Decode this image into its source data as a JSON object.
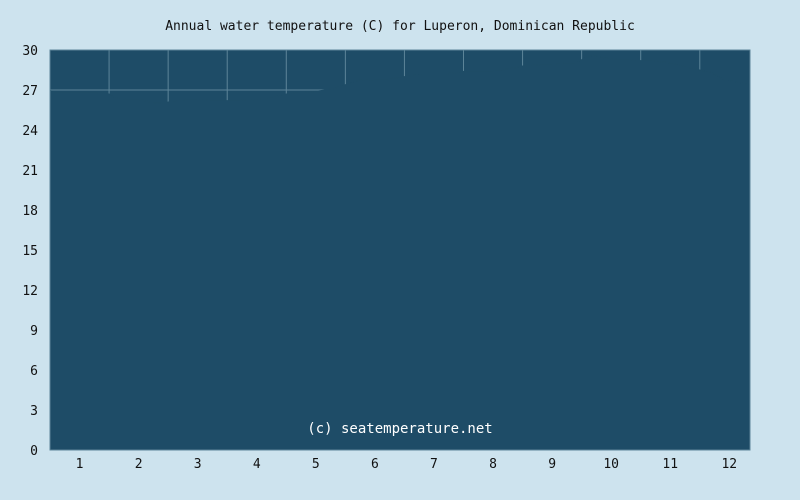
{
  "chart_data": {
    "type": "area",
    "title": "Annual water temperature (C) for Luperon, Dominican Republic",
    "xlabel": "",
    "ylabel": "",
    "ylim": [
      0,
      30
    ],
    "xlim": [
      0.5,
      12.35
    ],
    "grid": true,
    "x_ticks": [
      "1",
      "2",
      "3",
      "4",
      "5",
      "6",
      "7",
      "8",
      "9",
      "10",
      "11",
      "12"
    ],
    "y_ticks": [
      "0",
      "3",
      "6",
      "9",
      "12",
      "15",
      "18",
      "21",
      "24",
      "27",
      "30"
    ],
    "watermark": "(c) seatemperature.net",
    "colors": {
      "background": "#cde3ee",
      "plot_fill": "#1e4c67",
      "area_fill": "#1e4c67",
      "grid": "#5d8599",
      "text": "#111111",
      "watermark": "#ffffff"
    },
    "series": [
      {
        "x": [
          0.5,
          0.55,
          0.7,
          0.9,
          1.1,
          1.3,
          1.5,
          1.6,
          1.8,
          2.0,
          2.1,
          2.3,
          2.5,
          2.8,
          3.0,
          3.2,
          3.4,
          3.7,
          4.0,
          4.3,
          4.5,
          4.7,
          5.0,
          5.3,
          5.5,
          5.7,
          6.0,
          6.2,
          6.5,
          6.8,
          7.0,
          7.2,
          7.5,
          7.8,
          8.0,
          8.3,
          8.5,
          8.8,
          9.0,
          9.2,
          9.4,
          9.55,
          9.7,
          9.9,
          10.1,
          10.3,
          10.5,
          10.7,
          10.9,
          11.1,
          11.3,
          11.5,
          11.7,
          11.9,
          12.1,
          12.35
        ],
        "y": [
          27.0,
          26.8,
          26.8,
          26.8,
          26.8,
          26.8,
          26.7,
          26.4,
          26.3,
          26.3,
          26.2,
          26.0,
          26.1,
          26.3,
          26.3,
          26.2,
          26.2,
          26.2,
          26.3,
          26.5,
          26.7,
          26.8,
          26.9,
          27.1,
          27.4,
          27.7,
          27.8,
          27.8,
          28.0,
          28.2,
          28.2,
          28.2,
          28.4,
          28.4,
          28.4,
          28.6,
          28.8,
          28.9,
          28.9,
          29.0,
          29.0,
          29.4,
          29.6,
          29.4,
          29.3,
          29.3,
          29.2,
          29.2,
          29.1,
          28.9,
          28.7,
          28.5,
          28.3,
          27.8,
          27.6,
          27.4
        ]
      }
    ]
  }
}
